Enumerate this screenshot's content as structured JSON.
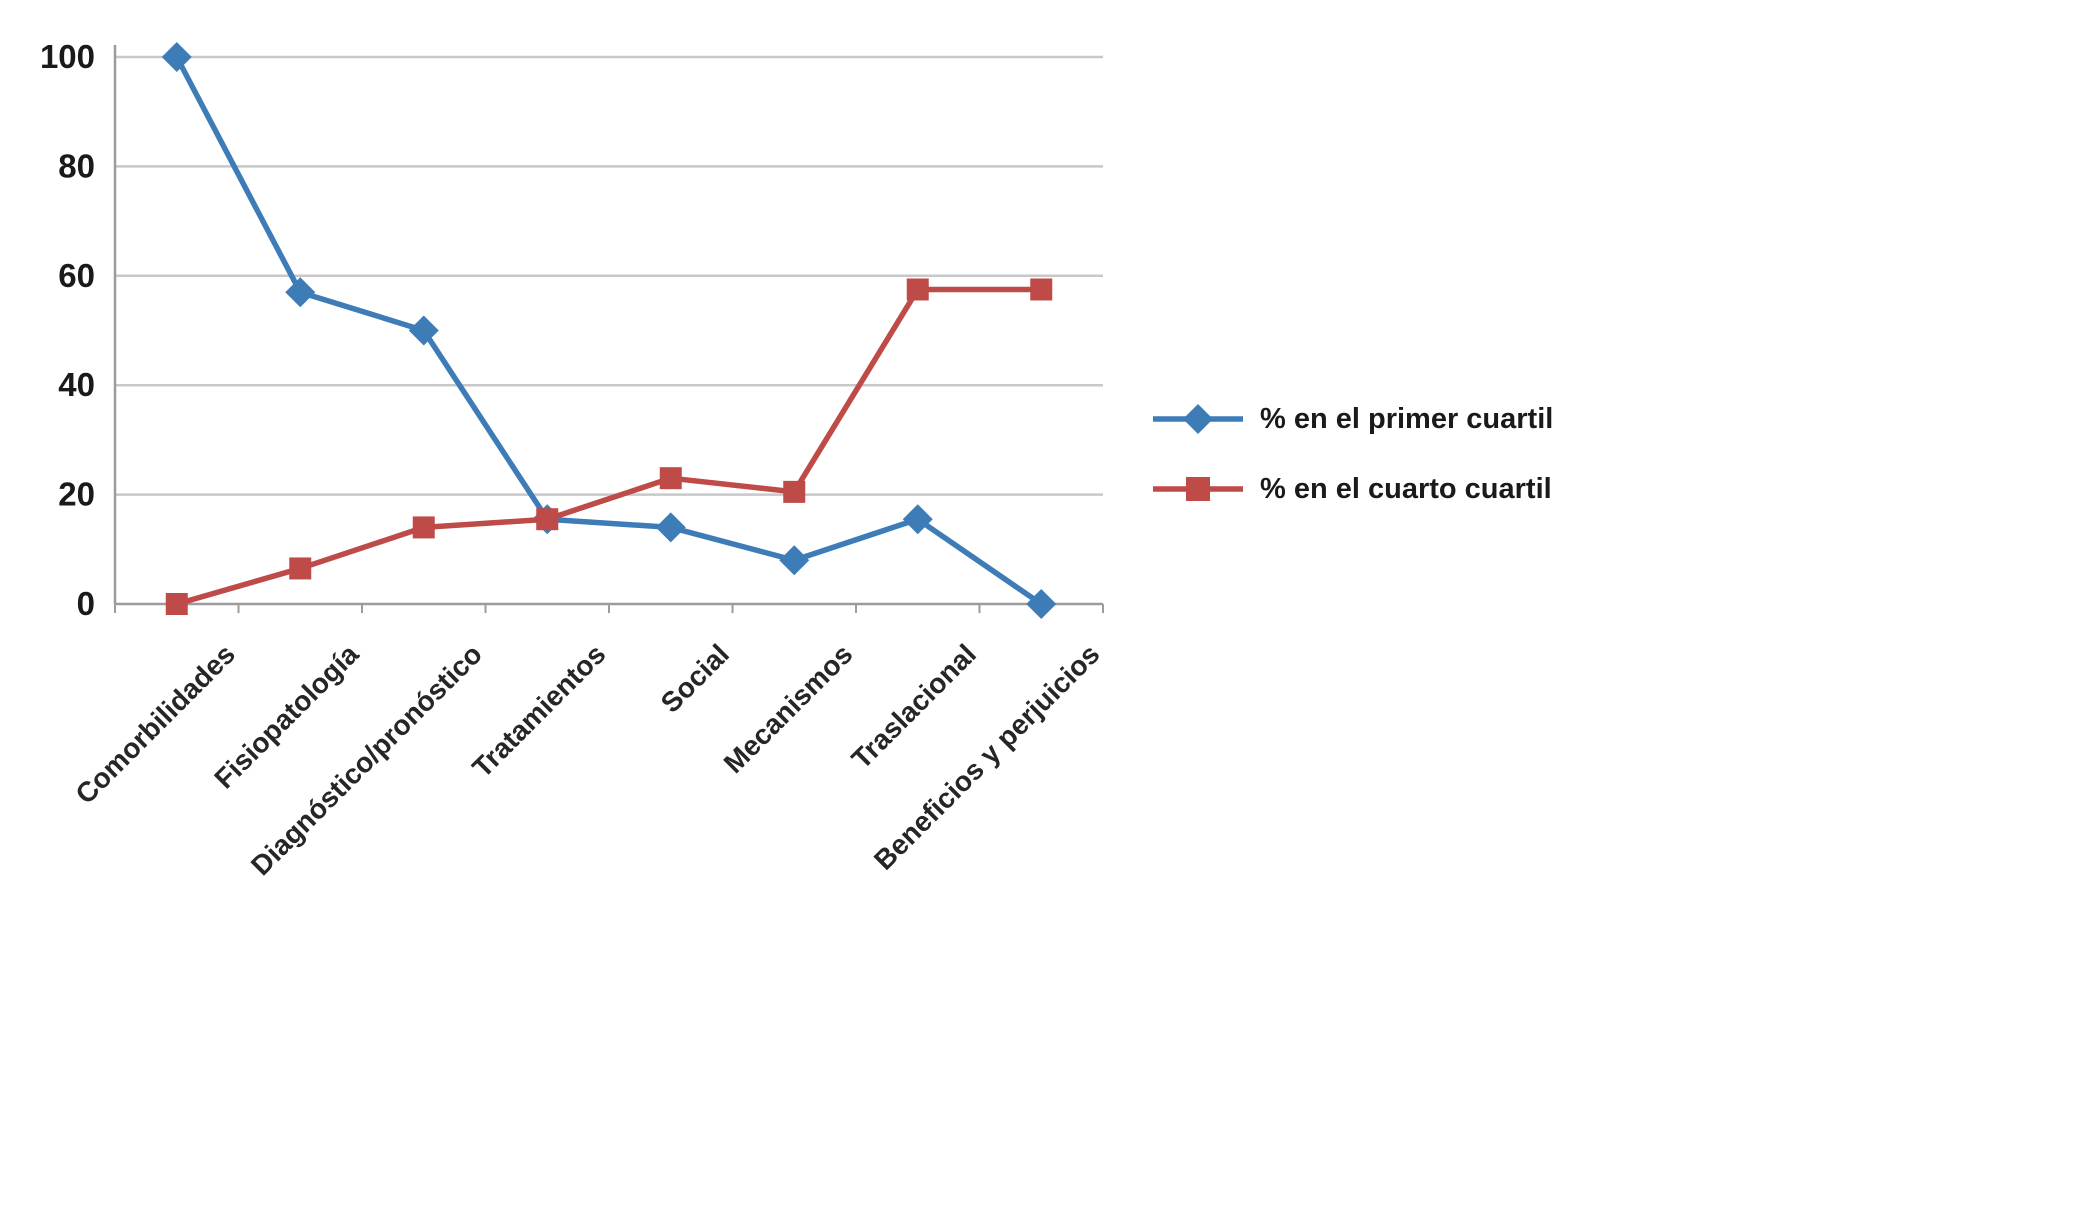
{
  "chart_data": {
    "type": "line",
    "categories": [
      "Comorbilidades",
      "Fisiopatología",
      "Diagnóstico/pronóstico",
      "Tratamientos",
      "Social",
      "Mecanismos",
      "Traslacional",
      "Beneficios y perjuicios"
    ],
    "series": [
      {
        "name": "% en el primer cuartil",
        "color": "#3E7CB8",
        "marker": "diamond",
        "values": [
          100,
          57,
          50,
          15.5,
          14,
          8,
          15.5,
          0
        ]
      },
      {
        "name": "% en el cuarto cuartil",
        "color": "#BE4B48",
        "marker": "square",
        "values": [
          0,
          6.5,
          14,
          15.5,
          23,
          20.5,
          57.5,
          57.5
        ]
      }
    ],
    "title": "",
    "xlabel": "",
    "ylabel": "",
    "ylim": [
      0,
      100
    ],
    "yticks": [
      0,
      20,
      40,
      60,
      80,
      100
    ],
    "grid": true,
    "legend_position": "right",
    "styles": {
      "gridline_color": "#C8C8C8",
      "axis_color": "#9C9C9C",
      "tick_label_color": "#1a1a1a",
      "category_label_color": "#262626"
    }
  }
}
